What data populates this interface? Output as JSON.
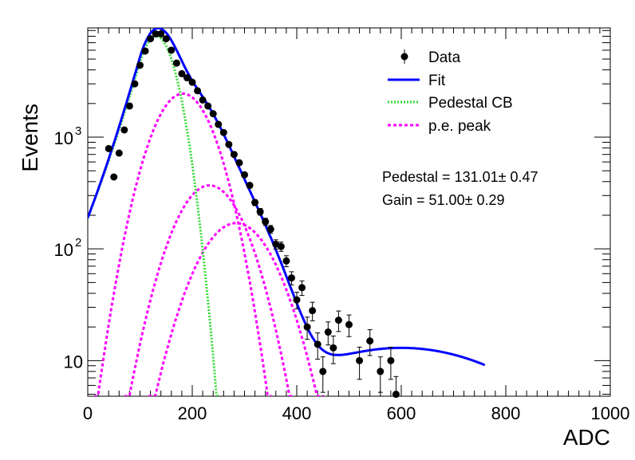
{
  "chart_data": {
    "type": "scatter",
    "xlabel": "ADC",
    "ylabel": "Events",
    "xlim": [
      0,
      1000
    ],
    "ylim": [
      4.8,
      9500
    ],
    "yscale": "log",
    "grid": false,
    "legend_position": "top-right",
    "x_ticks": [
      {
        "value": 0,
        "label": "0"
      },
      {
        "value": 200,
        "label": "200"
      },
      {
        "value": 400,
        "label": "400"
      },
      {
        "value": 600,
        "label": "600"
      },
      {
        "value": 800,
        "label": "800"
      },
      {
        "value": 1000,
        "label": "1000"
      }
    ],
    "y_ticks": [
      {
        "value": 10,
        "base": "10",
        "exp": ""
      },
      {
        "value": 100,
        "base": "10",
        "exp": "2"
      },
      {
        "value": 1000,
        "base": "10",
        "exp": "3"
      }
    ],
    "annotations": [
      {
        "text": "Pedestal = 131.01± 0.47"
      },
      {
        "text": "Gain = 51.00± 0.29"
      }
    ],
    "series": [
      {
        "name": "Data",
        "kind": "points",
        "color": "#000000",
        "x": [
          40,
          50,
          60,
          70,
          80,
          90,
          100,
          110,
          120,
          130,
          140,
          150,
          160,
          170,
          180,
          190,
          200,
          210,
          220,
          230,
          240,
          250,
          260,
          270,
          280,
          290,
          300,
          310,
          320,
          330,
          340,
          350,
          360,
          370,
          380,
          390,
          400,
          410,
          420,
          430,
          440,
          450,
          460,
          470,
          480,
          500,
          520,
          540,
          560,
          580,
          590
        ],
        "y": [
          790,
          440,
          720,
          1160,
          1900,
          3000,
          4400,
          5900,
          7600,
          8400,
          8400,
          7600,
          6000,
          4600,
          3700,
          3400,
          3100,
          2600,
          2150,
          1900,
          1620,
          1300,
          1100,
          860,
          700,
          590,
          460,
          370,
          260,
          215,
          175,
          150,
          110,
          105,
          78,
          55,
          35,
          45,
          20,
          28,
          14,
          8,
          18,
          13,
          23,
          21,
          10,
          15,
          8,
          10,
          5
        ],
        "err": [
          28,
          21,
          27,
          34,
          44,
          55,
          66,
          77,
          87,
          92,
          92,
          87,
          77,
          68,
          61,
          58,
          56,
          51,
          46,
          44,
          40,
          36,
          33,
          29,
          26,
          24,
          21,
          19,
          16,
          15,
          13,
          12,
          10.5,
          10,
          8.8,
          7.4,
          5.9,
          6.7,
          4.5,
          5.3,
          3.7,
          2.8,
          4.2,
          3.6,
          4.8,
          4.6,
          3.2,
          3.9,
          2.8,
          3.2,
          2.2
        ]
      },
      {
        "name": "Fit",
        "kind": "line",
        "color": "#0000ff",
        "style": "solid"
      },
      {
        "name": "Pedestal CB",
        "kind": "line",
        "color": "#33dd33",
        "style": "dotted"
      },
      {
        "name": "p.e. peak",
        "kind": "line",
        "color": "#ff00ff",
        "style": "dotted"
      }
    ],
    "fit_model": {
      "pedestal": {
        "amplitude": 8000,
        "mean": 131,
        "sigma": 30,
        "alpha": 1.1,
        "n": 12
      },
      "pe_peaks": [
        {
          "amplitude": 2450,
          "mean": 182,
          "sigma": 46
        },
        {
          "amplitude": 370,
          "mean": 233,
          "sigma": 52
        },
        {
          "amplitude": 170,
          "mean": 284,
          "sigma": 58
        }
      ],
      "tail": {
        "amplitude": 13,
        "mean": 600,
        "sigma": 190
      },
      "x_range": [
        0,
        760
      ]
    }
  }
}
